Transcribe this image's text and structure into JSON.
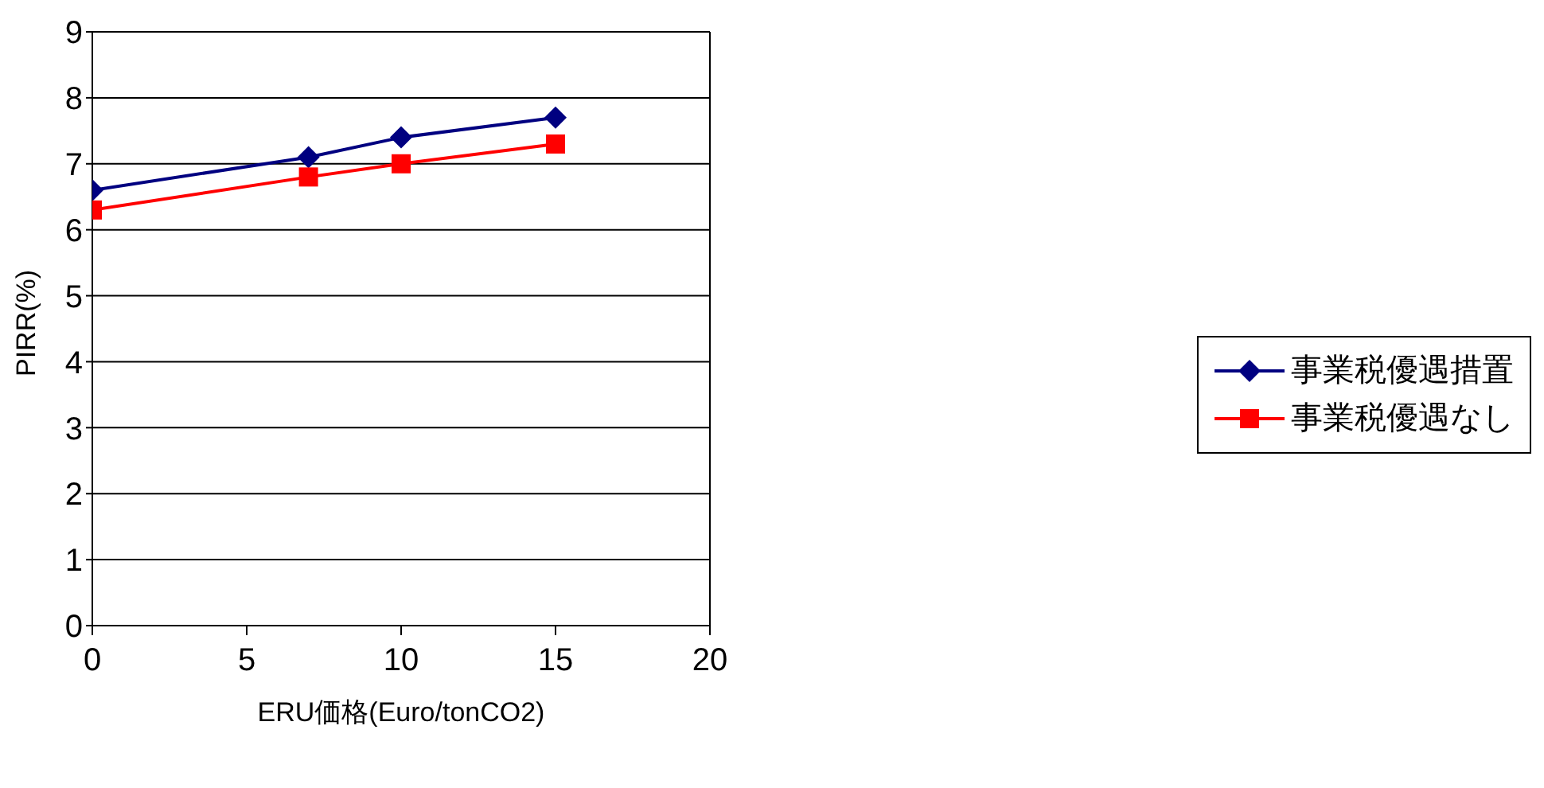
{
  "chart_data": {
    "type": "line",
    "xlabel": "ERU価格(Euro/tonCO2)",
    "ylabel": "PIRR(%)",
    "x": [
      0,
      7,
      10,
      15
    ],
    "series": [
      {
        "name": "事業税優遇措置",
        "color": "#000080",
        "values": [
          6.6,
          7.1,
          7.4,
          7.7
        ],
        "marker": "diamond"
      },
      {
        "name": "事業税優遇なし",
        "color": "#ff0000",
        "values": [
          6.3,
          6.8,
          7.0,
          7.3
        ],
        "marker": "square"
      }
    ],
    "xlim": [
      0,
      20
    ],
    "xticks": [
      0,
      5,
      10,
      15,
      20
    ],
    "ylim": [
      0,
      9
    ],
    "yticks": [
      0,
      1,
      2,
      3,
      4,
      5,
      6,
      7,
      8,
      9
    ],
    "grid": "y",
    "legend": "right"
  }
}
